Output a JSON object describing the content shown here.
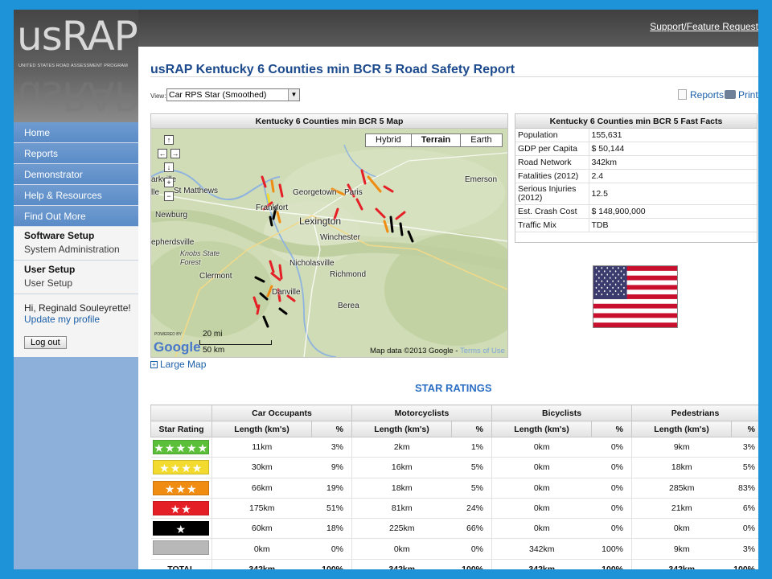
{
  "header": {
    "logo": "usRAP",
    "logo_subtitle": "UNITED STATES ROAD ASSESSMENT PROGRAM",
    "support_link": "Support/Feature Request"
  },
  "sidebar": {
    "nav": [
      "Home",
      "Reports",
      "Demonstrator",
      "Help & Resources",
      "Find Out More"
    ],
    "software_setup": {
      "title": "Software Setup",
      "item": "System Administration"
    },
    "user_setup": {
      "title": "User Setup",
      "item": "User Setup"
    },
    "user": {
      "greeting": "Hi, Reginald Souleyrette!",
      "profile_link": "Update my profile",
      "logout": "Log out"
    }
  },
  "page": {
    "title": "usRAP Kentucky 6 Counties min BCR 5 Road Safety Report",
    "view_label": "View:",
    "view_value": "Car RPS Star (Smoothed)",
    "reports_link": "Reports",
    "print_link": "Print"
  },
  "map": {
    "header": "Kentucky 6 Counties min BCR 5 Map",
    "map_types": [
      "Hybrid",
      "Terrain",
      "Earth"
    ],
    "active_type": "Terrain",
    "labels": {
      "st_matthews": "St Matthews",
      "newburg": "Newburg",
      "shepherdsville": "epherdsville",
      "frankfort": "Frankfort",
      "georgetown": "Georgetown",
      "paris": "Paris",
      "lexington": "Lexington",
      "winchester": "Winchester",
      "nicholasville": "Nicholasville",
      "richmond": "Richmond",
      "danville": "Danville",
      "berea": "Berea",
      "emerson": "Emerson",
      "knobs": "Knobs State Forest",
      "clermont": "Clermont",
      "parkville": "arkville",
      "lle": "lle"
    },
    "google": "Google",
    "powered_by": "POWERED BY",
    "scale_mi": "20 mi",
    "scale_km": "50 km",
    "credit": "Map data ©2013 Google -",
    "terms": "Terms of Use",
    "large_map": "Large Map"
  },
  "facts": {
    "header": "Kentucky 6 Counties min BCR 5 Fast Facts",
    "rows": [
      {
        "label": "Population",
        "value": "155,631"
      },
      {
        "label": "GDP per Capita",
        "value": "$ 50,144"
      },
      {
        "label": "Road Network",
        "value": "342km"
      },
      {
        "label": "Fatalities (2012)",
        "value": "2.4"
      },
      {
        "label": "Serious Injuries (2012)",
        "value": "12.5"
      },
      {
        "label": "Est. Crash Cost",
        "value": "$ 148,900,000"
      },
      {
        "label": "Traffic Mix",
        "value": "TDB"
      }
    ]
  },
  "star_ratings": {
    "heading": "STAR RATINGS",
    "groups": [
      "Car Occupants",
      "Motorcyclists",
      "Bicyclists",
      "Pedestrians"
    ],
    "col_star": "Star Rating",
    "col_length": "Length (km's)",
    "col_pct": "%",
    "rows": [
      {
        "stars": "★★★★★",
        "color": "#5cbf3a",
        "cells": [
          "11km",
          "3%",
          "2km",
          "1%",
          "0km",
          "0%",
          "9km",
          "3%"
        ]
      },
      {
        "stars": "★★★★",
        "color": "#f3da2e",
        "cells": [
          "30km",
          "9%",
          "16km",
          "5%",
          "0km",
          "0%",
          "18km",
          "5%"
        ]
      },
      {
        "stars": "★★★",
        "color": "#ef8c11",
        "cells": [
          "66km",
          "19%",
          "18km",
          "5%",
          "0km",
          "0%",
          "285km",
          "83%"
        ]
      },
      {
        "stars": "★★",
        "color": "#e51f26",
        "cells": [
          "175km",
          "51%",
          "81km",
          "24%",
          "0km",
          "0%",
          "21km",
          "6%"
        ]
      },
      {
        "stars": "★",
        "color": "#000000",
        "cells": [
          "60km",
          "18%",
          "225km",
          "66%",
          "0km",
          "0%",
          "0km",
          "0%"
        ]
      },
      {
        "stars": "",
        "color": "#b8b8b8",
        "cells": [
          "0km",
          "0%",
          "0km",
          "0%",
          "342km",
          "100%",
          "9km",
          "3%"
        ]
      }
    ],
    "total": {
      "label": "TOTAL",
      "cells": [
        "342km",
        "100%",
        "342km",
        "100%",
        "342km",
        "100%",
        "342km",
        "100%"
      ]
    }
  },
  "colors": {
    "brand_blue": "#1c4a8c",
    "link_blue": "#1a5fa8",
    "sidebar_blue": "#6f9bd0",
    "frame_blue": "#1f93d8"
  }
}
